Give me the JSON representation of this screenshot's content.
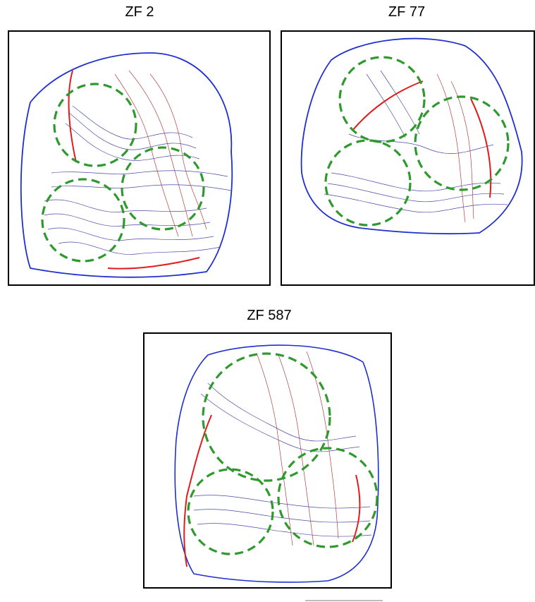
{
  "panels": [
    {
      "title": "ZF 2"
    },
    {
      "title": "ZF 77"
    },
    {
      "title": "ZF 587"
    }
  ],
  "colors": {
    "contour_blue": "#4a4aa8",
    "contour_red": "#b04040",
    "boundary_blue": "#1f2fd0",
    "boundary_red": "#e01c1c",
    "circle_green": "#2e9a2e",
    "frame": "#000000"
  }
}
